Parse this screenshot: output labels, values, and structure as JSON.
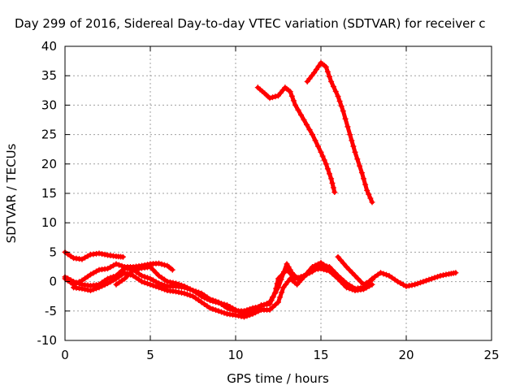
{
  "chart_data": {
    "type": "scatter",
    "title": "Day 299 of 2016, Sidereal Day-to-day VTEC variation (SDTVAR) for receiver c",
    "xlabel": "GPS time / hours",
    "ylabel": "SDTVAR / TECUs",
    "xlim": [
      0,
      25
    ],
    "ylim": [
      -10,
      40
    ],
    "x_ticks": [
      "0",
      "5",
      "10",
      "15",
      "20",
      "25"
    ],
    "y_ticks": [
      "-10",
      "-5",
      "0",
      "5",
      "10",
      "15",
      "20",
      "25",
      "30",
      "35",
      "40"
    ],
    "grid": true,
    "series": [
      {
        "color": "#ff0000",
        "points": [
          [
            0.0,
            5.0
          ],
          [
            0.5,
            4.0
          ],
          [
            1.0,
            3.8
          ],
          [
            1.5,
            4.6
          ],
          [
            2.0,
            4.8
          ],
          [
            2.5,
            4.5
          ],
          [
            3.0,
            4.3
          ],
          [
            3.4,
            4.2
          ]
        ]
      },
      {
        "color": "#ff0000",
        "points": [
          [
            0.0,
            0.5
          ],
          [
            0.5,
            -0.5
          ],
          [
            1.0,
            0.2
          ],
          [
            1.5,
            1.2
          ],
          [
            2.0,
            2.0
          ],
          [
            2.5,
            2.2
          ],
          [
            3.0,
            3.0
          ],
          [
            3.5,
            2.5
          ],
          [
            4.0,
            2.5
          ],
          [
            4.5,
            2.7
          ],
          [
            5.0,
            3.0
          ],
          [
            5.5,
            3.1
          ],
          [
            6.0,
            2.7
          ],
          [
            6.3,
            2.0
          ]
        ]
      },
      {
        "color": "#ff0000",
        "points": [
          [
            0.0,
            0.8
          ],
          [
            0.5,
            0.0
          ],
          [
            1.0,
            -0.5
          ],
          [
            1.5,
            -0.7
          ],
          [
            2.0,
            -0.5
          ],
          [
            2.5,
            0.5
          ],
          [
            3.0,
            1.0
          ],
          [
            3.5,
            2.3
          ],
          [
            4.0,
            2.0
          ],
          [
            4.5,
            1.0
          ],
          [
            5.0,
            0.5
          ],
          [
            5.5,
            -0.3
          ],
          [
            6.0,
            -0.8
          ],
          [
            6.5,
            -0.8
          ],
          [
            7.0,
            -1.0
          ],
          [
            7.5,
            -1.5
          ],
          [
            8.0,
            -2.5
          ],
          [
            8.5,
            -3.2
          ],
          [
            9.0,
            -3.6
          ],
          [
            9.5,
            -4.0
          ],
          [
            10.0,
            -4.8
          ],
          [
            10.5,
            -5.5
          ],
          [
            11.0,
            -5.0
          ],
          [
            11.5,
            -4.0
          ],
          [
            12.0,
            -3.8
          ],
          [
            12.3,
            -2.0
          ],
          [
            12.5,
            0.5
          ],
          [
            13.0,
            2.0
          ],
          [
            13.5,
            0.5
          ],
          [
            14.0,
            1.0
          ],
          [
            14.5,
            1.7
          ],
          [
            15.0,
            2.8
          ],
          [
            15.5,
            2.5
          ],
          [
            16.0,
            1.0
          ],
          [
            16.5,
            -0.3
          ],
          [
            17.0,
            -1.2
          ],
          [
            17.5,
            -1.0
          ],
          [
            18.0,
            0.5
          ],
          [
            18.5,
            1.5
          ],
          [
            19.0,
            1.0
          ],
          [
            19.5,
            0.0
          ],
          [
            20.0,
            -0.8
          ],
          [
            20.5,
            -0.5
          ],
          [
            21.0,
            0.0
          ],
          [
            21.5,
            0.5
          ],
          [
            22.0,
            1.0
          ],
          [
            22.5,
            1.3
          ],
          [
            22.9,
            1.5
          ]
        ]
      },
      {
        "color": "#ff0000",
        "points": [
          [
            0.5,
            -1.0
          ],
          [
            1.0,
            -1.2
          ],
          [
            1.5,
            -1.5
          ],
          [
            2.0,
            -1.0
          ],
          [
            2.5,
            -0.3
          ],
          [
            3.0,
            0.5
          ],
          [
            3.5,
            1.5
          ],
          [
            4.0,
            1.0
          ],
          [
            4.5,
            0.0
          ],
          [
            5.0,
            -0.5
          ],
          [
            5.5,
            -1.0
          ],
          [
            6.0,
            -1.5
          ],
          [
            6.5,
            -1.7
          ],
          [
            7.0,
            -2.0
          ],
          [
            7.5,
            -2.5
          ],
          [
            8.0,
            -3.5
          ],
          [
            8.5,
            -4.5
          ],
          [
            9.0,
            -5.0
          ],
          [
            9.5,
            -5.5
          ],
          [
            10.0,
            -5.7
          ],
          [
            10.5,
            -6.0
          ],
          [
            11.0,
            -5.5
          ],
          [
            11.5,
            -4.8
          ],
          [
            12.0,
            -4.8
          ],
          [
            12.5,
            -3.5
          ],
          [
            12.8,
            -1.0
          ],
          [
            13.2,
            0.5
          ],
          [
            13.6,
            -0.5
          ],
          [
            14.0,
            0.8
          ],
          [
            14.5,
            2.0
          ],
          [
            15.0,
            2.2
          ],
          [
            15.5,
            1.8
          ],
          [
            16.0,
            0.5
          ],
          [
            16.5,
            -1.0
          ],
          [
            17.0,
            -1.5
          ],
          [
            17.5,
            -1.3
          ],
          [
            18.0,
            -0.5
          ]
        ]
      },
      {
        "color": "#ff0000",
        "points": [
          [
            3.0,
            -0.5
          ],
          [
            3.5,
            0.5
          ],
          [
            4.0,
            2.0
          ],
          [
            4.5,
            2.3
          ],
          [
            5.0,
            2.5
          ],
          [
            5.5,
            1.0
          ],
          [
            6.0,
            0.0
          ],
          [
            6.5,
            -0.3
          ],
          [
            7.0,
            -0.8
          ],
          [
            7.5,
            -1.5
          ],
          [
            8.0,
            -2.0
          ],
          [
            8.5,
            -3.0
          ],
          [
            9.0,
            -3.5
          ],
          [
            9.5,
            -4.5
          ],
          [
            10.0,
            -5.0
          ],
          [
            10.5,
            -5.0
          ],
          [
            11.0,
            -4.5
          ],
          [
            11.5,
            -4.2
          ],
          [
            12.0,
            -3.5
          ],
          [
            12.5,
            -1.0
          ],
          [
            13.0,
            3.0
          ],
          [
            13.3,
            1.5
          ],
          [
            13.7,
            0.3
          ],
          [
            14.0,
            0.8
          ],
          [
            14.5,
            2.5
          ],
          [
            15.0,
            3.2
          ],
          [
            15.5,
            2.2
          ],
          [
            15.8,
            1.5
          ]
        ]
      },
      {
        "color": "#ff0000",
        "points": [
          [
            16.0,
            4.2
          ],
          [
            16.5,
            2.5
          ],
          [
            17.0,
            1.0
          ],
          [
            17.5,
            -0.5
          ],
          [
            18.0,
            0.3
          ]
        ]
      },
      {
        "color": "#ff0000",
        "points": [
          [
            11.3,
            33.0
          ],
          [
            11.7,
            32.0
          ],
          [
            12.0,
            31.2
          ],
          [
            12.5,
            31.6
          ],
          [
            12.9,
            33.0
          ],
          [
            13.2,
            32.3
          ],
          [
            13.5,
            30.0
          ],
          [
            14.0,
            27.5
          ],
          [
            14.5,
            25.0
          ],
          [
            15.0,
            22.0
          ],
          [
            15.3,
            20.0
          ],
          [
            15.6,
            17.5
          ],
          [
            15.8,
            15.2
          ]
        ]
      },
      {
        "color": "#ff0000",
        "points": [
          [
            14.2,
            34.0
          ],
          [
            14.6,
            35.5
          ],
          [
            15.0,
            37.2
          ],
          [
            15.3,
            36.5
          ],
          [
            15.6,
            34.0
          ],
          [
            16.0,
            31.5
          ],
          [
            16.3,
            29.0
          ],
          [
            16.7,
            25.0
          ],
          [
            17.0,
            22.0
          ],
          [
            17.4,
            18.5
          ],
          [
            17.7,
            15.5
          ],
          [
            18.0,
            13.5
          ]
        ]
      }
    ]
  }
}
